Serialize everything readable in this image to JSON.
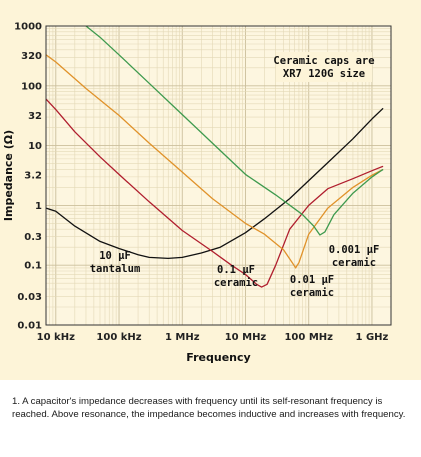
{
  "chart_data": {
    "type": "line",
    "xlabel": "Frequency",
    "ylabel": "Impedance (Ω)",
    "x_scale": "log",
    "y_scale": "log",
    "xlim": [
      7000,
      2000000000
    ],
    "ylim": [
      0.01,
      1000
    ],
    "x_ticks": [
      {
        "value": 10000,
        "label": "10 kHz"
      },
      {
        "value": 100000,
        "label": "100 kHz"
      },
      {
        "value": 1000000,
        "label": "1 MHz"
      },
      {
        "value": 10000000,
        "label": "10 MHz"
      },
      {
        "value": 100000000,
        "label": "100 MHz"
      },
      {
        "value": 1000000000,
        "label": "1 GHz"
      }
    ],
    "y_ticks": [
      {
        "value": 1000,
        "label": "1000"
      },
      {
        "value": 320,
        "label": "320"
      },
      {
        "value": 100,
        "label": "100"
      },
      {
        "value": 32,
        "label": "32"
      },
      {
        "value": 10,
        "label": "10"
      },
      {
        "value": 3.2,
        "label": "3.2"
      },
      {
        "value": 1,
        "label": "1"
      },
      {
        "value": 0.3,
        "label": "0.3"
      },
      {
        "value": 0.1,
        "label": "0.1"
      },
      {
        "value": 0.03,
        "label": "0.03"
      },
      {
        "value": 0.01,
        "label": "0.01"
      }
    ],
    "grid": true,
    "series": [
      {
        "name": "10 μF tantalum",
        "color": "#111111",
        "points": [
          [
            7000,
            0.9
          ],
          [
            10000,
            0.8
          ],
          [
            20000,
            0.45
          ],
          [
            50000,
            0.25
          ],
          [
            100000,
            0.19
          ],
          [
            200000,
            0.15
          ],
          [
            300000,
            0.135
          ],
          [
            600000,
            0.13
          ],
          [
            1000000,
            0.135
          ],
          [
            2000000,
            0.16
          ],
          [
            4000000,
            0.2
          ],
          [
            10000000,
            0.35
          ],
          [
            20000000,
            0.6
          ],
          [
            50000000,
            1.3
          ],
          [
            100000000,
            2.6
          ],
          [
            200000000,
            5.2
          ],
          [
            500000000,
            13
          ],
          [
            1000000000,
            28
          ],
          [
            1500000000,
            42
          ]
        ]
      },
      {
        "name": "0.1 μF ceramic",
        "color": "#b01e2e",
        "points": [
          [
            7000,
            60
          ],
          [
            10000,
            40
          ],
          [
            20000,
            17
          ],
          [
            50000,
            6.5
          ],
          [
            100000,
            3.3
          ],
          [
            300000,
            1.15
          ],
          [
            1000000,
            0.38
          ],
          [
            3000000,
            0.17
          ],
          [
            6000000,
            0.1
          ],
          [
            10000000,
            0.07
          ],
          [
            15000000,
            0.048
          ],
          [
            18000000,
            0.043
          ],
          [
            22000000,
            0.048
          ],
          [
            30000000,
            0.1
          ],
          [
            50000000,
            0.4
          ],
          [
            100000000,
            1
          ],
          [
            200000000,
            1.9
          ],
          [
            500000000,
            2.8
          ],
          [
            1000000000,
            3.8
          ],
          [
            1500000000,
            4.5
          ]
        ]
      },
      {
        "name": "0.01 μF ceramic",
        "color": "#e0922a",
        "points": [
          [
            7000,
            330
          ],
          [
            10000,
            250
          ],
          [
            30000,
            90
          ],
          [
            100000,
            32
          ],
          [
            300000,
            11
          ],
          [
            1000000,
            3.6
          ],
          [
            3000000,
            1.3
          ],
          [
            10000000,
            0.5
          ],
          [
            20000000,
            0.33
          ],
          [
            40000000,
            0.18
          ],
          [
            55000000,
            0.11
          ],
          [
            62000000,
            0.09
          ],
          [
            70000000,
            0.11
          ],
          [
            100000000,
            0.33
          ],
          [
            200000000,
            0.9
          ],
          [
            500000000,
            2
          ],
          [
            1000000000,
            3.2
          ],
          [
            1500000000,
            4
          ]
        ]
      },
      {
        "name": "0.001 μF ceramic",
        "color": "#3e9a4e",
        "points": [
          [
            30000,
            1000
          ],
          [
            50000,
            650
          ],
          [
            100000,
            330
          ],
          [
            300000,
            110
          ],
          [
            1000000,
            33
          ],
          [
            3000000,
            11
          ],
          [
            10000000,
            3.3
          ],
          [
            30000000,
            1.5
          ],
          [
            80000000,
            0.7
          ],
          [
            120000000,
            0.45
          ],
          [
            150000000,
            0.32
          ],
          [
            180000000,
            0.36
          ],
          [
            250000000,
            0.7
          ],
          [
            500000000,
            1.6
          ],
          [
            1000000000,
            3
          ],
          [
            1500000000,
            4
          ]
        ]
      }
    ],
    "annotations": [
      {
        "lines": [
          "Ceramic caps are",
          "XR7 120G size"
        ]
      },
      {
        "lines": [
          "10 μF",
          "tantalum"
        ]
      },
      {
        "lines": [
          "0.1 μF",
          "ceramic"
        ]
      },
      {
        "lines": [
          "0.01 μF",
          "ceramic"
        ]
      },
      {
        "lines": [
          "0.001 μF",
          "ceramic"
        ]
      }
    ]
  },
  "caption": "1. A capacitor's impedance decreases with frequency until its self-resonant frequency is reached. Above resonance, the impedance becomes inductive and increases with frequency."
}
